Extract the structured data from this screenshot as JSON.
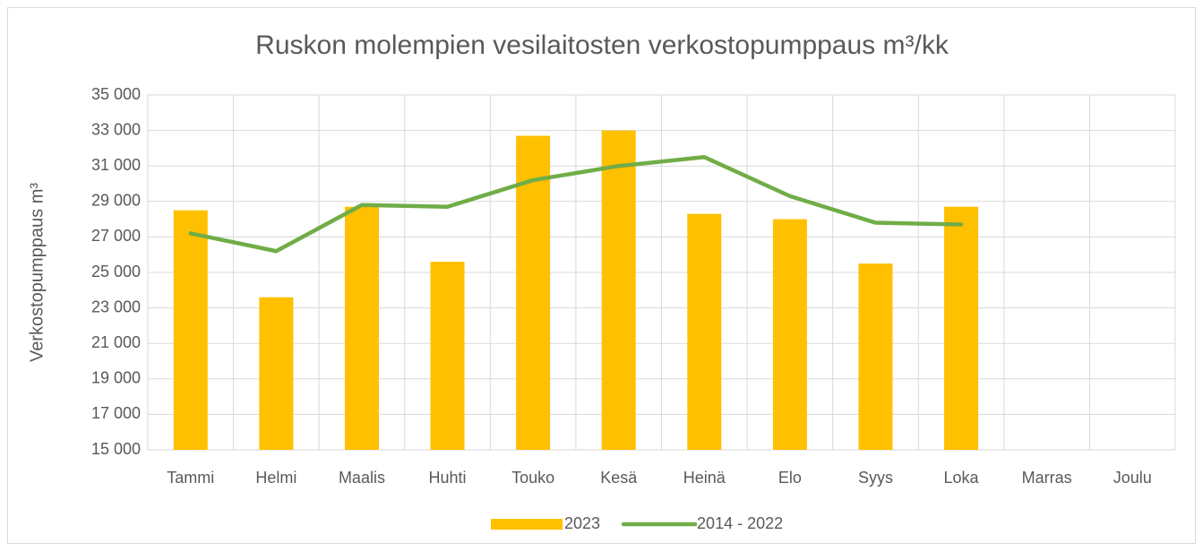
{
  "chart_data": {
    "type": "bar",
    "title": "Ruskon molempien vesilaitosten verkostopumppaus m³/kk",
    "y_label": "Verkostopumppaus m³",
    "categories": [
      "Tammi",
      "Helmi",
      "Maalis",
      "Huhti",
      "Touko",
      "Kesä",
      "Heinä",
      "Elo",
      "Syys",
      "Loka",
      "Marras",
      "Joulu"
    ],
    "series": [
      {
        "name": "2023",
        "type": "bar",
        "color": "#ffc000",
        "values": [
          28500,
          23600,
          28700,
          25600,
          32700,
          33000,
          28300,
          28000,
          25500,
          28700,
          null,
          null
        ]
      },
      {
        "name": "2014 - 2022",
        "type": "line",
        "color": "#70ad47",
        "values": [
          27200,
          26200,
          28800,
          28700,
          30200,
          31000,
          31500,
          29300,
          27800,
          27700,
          null,
          null
        ]
      }
    ],
    "ylim": [
      15000,
      35000
    ],
    "yticks": [
      {
        "value": 15000,
        "label": "15 000"
      },
      {
        "value": 17000,
        "label": "17 000"
      },
      {
        "value": 19000,
        "label": "19 000"
      },
      {
        "value": 21000,
        "label": "21 000"
      },
      {
        "value": 23000,
        "label": "23 000"
      },
      {
        "value": 25000,
        "label": "25 000"
      },
      {
        "value": 27000,
        "label": "27 000"
      },
      {
        "value": 29000,
        "label": "29 000"
      },
      {
        "value": 31000,
        "label": "31 000"
      },
      {
        "value": 33000,
        "label": "33 000"
      },
      {
        "value": 35000,
        "label": "35 000"
      }
    ],
    "grid": true,
    "legend": "bottom"
  }
}
